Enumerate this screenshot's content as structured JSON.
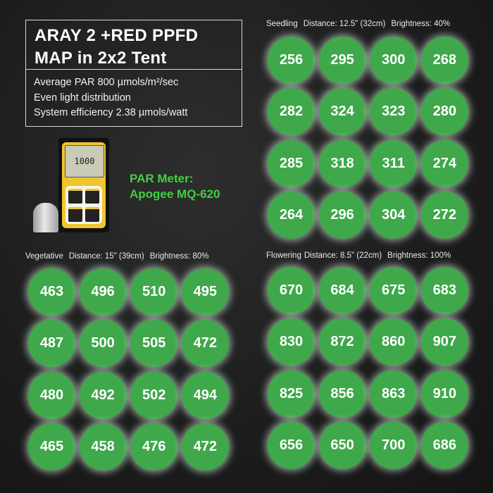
{
  "title": {
    "line1": "ARAY 2 +RED PPFD",
    "line2": "MAP in 2x2 Tent"
  },
  "specs": [
    "Average PAR 800 µmols/m²/sec",
    "Even light distribution",
    "System efficiency 2.38 µmols/watt"
  ],
  "meter": {
    "display": "1000",
    "label_line1": "PAR Meter:",
    "label_line2": "Apogee MQ-620",
    "label_color": "#3fd23f"
  },
  "colors": {
    "circle": "#3ea84a",
    "background": "#1c1c1c"
  },
  "maps": {
    "seedling": {
      "stage": "Seedling",
      "distance": "Distance: 12.5\" (32cm)",
      "brightness": "Brightness: 40%",
      "values": [
        [
          256,
          295,
          300,
          268
        ],
        [
          282,
          324,
          323,
          280
        ],
        [
          285,
          318,
          311,
          274
        ],
        [
          264,
          296,
          304,
          272
        ]
      ]
    },
    "vegetative": {
      "stage": "Vegetative",
      "distance": "Distance: 15\" (39cm)",
      "brightness": "Brightness: 80%",
      "values": [
        [
          463,
          496,
          510,
          495
        ],
        [
          487,
          500,
          505,
          472
        ],
        [
          480,
          492,
          502,
          494
        ],
        [
          465,
          458,
          476,
          472
        ]
      ]
    },
    "flowering": {
      "stage": "Flowering",
      "distance": "Distance: 8.5\" (22cm)",
      "brightness": "Brightness: 100%",
      "values": [
        [
          670,
          684,
          675,
          683
        ],
        [
          830,
          872,
          860,
          907
        ],
        [
          825,
          856,
          863,
          910
        ],
        [
          656,
          650,
          700,
          686
        ]
      ]
    }
  }
}
